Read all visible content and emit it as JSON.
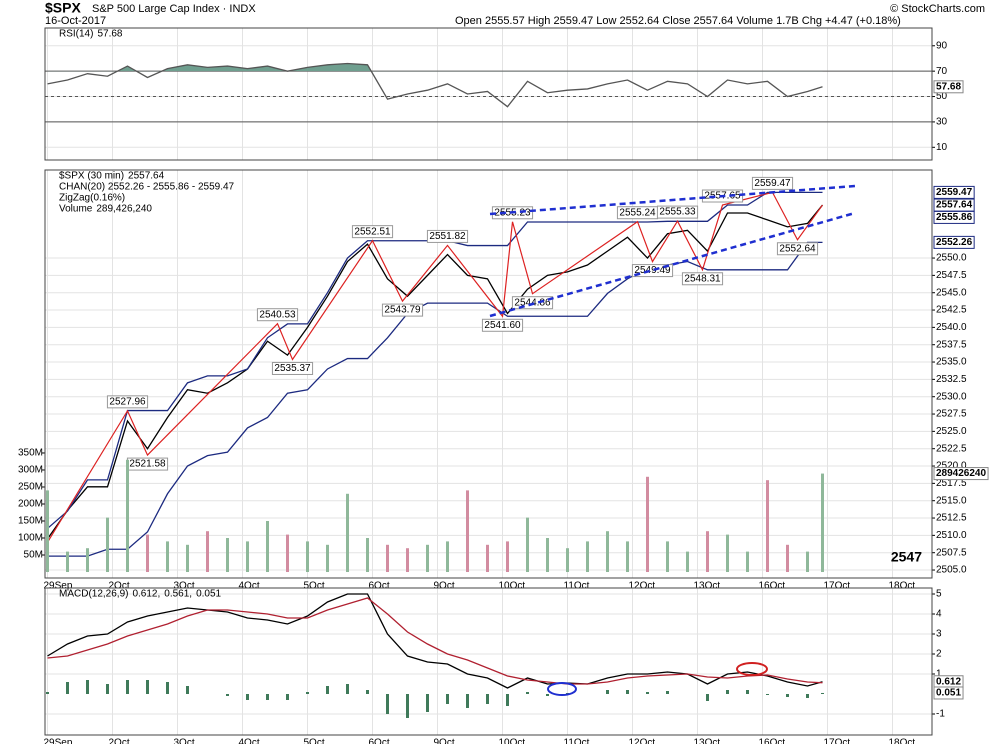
{
  "header": {
    "symbol": "$SPX",
    "name": "S&P 500 Large Cap Index · INDX",
    "date": "16-Oct-2017",
    "quote": "Open 2555.57   High 2559.47   Low 2552.64   Close 2557.64   Volume 1.7B   Chg +4.47 (+0.18%)",
    "credit": "© StockCharts.com"
  },
  "chart_data": [
    {
      "type": "line",
      "legend_layout": "row",
      "x": [
        0,
        4,
        8,
        12,
        16,
        20,
        24,
        28,
        32,
        36,
        40,
        44,
        48,
        52,
        56,
        60,
        64,
        68,
        72,
        76,
        80,
        84,
        88,
        92,
        96,
        100,
        104,
        108,
        112,
        116,
        120,
        124,
        128,
        132,
        136,
        140,
        144,
        148,
        152,
        155
      ],
      "xlim": [
        -0.5,
        176.9
      ],
      "xticks": [
        0,
        13,
        26,
        39,
        52,
        65,
        78,
        91,
        104,
        117,
        130,
        143,
        156,
        169
      ],
      "ylim": [
        0,
        104
      ],
      "yticks": [
        90,
        70,
        50,
        30,
        10
      ],
      "levels": [
        70,
        50,
        30
      ],
      "fill_above": 70,
      "series": [
        {
          "name": "RSI(14)",
          "color": "#555555",
          "fill": "#6f9f8f",
          "show_last": true,
          "boxed_last": true,
          "values": [
            60,
            63,
            68,
            66,
            74,
            65,
            72,
            75,
            73,
            74,
            72,
            74,
            70,
            73,
            75,
            76,
            75,
            48,
            52,
            55,
            60,
            52,
            54,
            42,
            62,
            53,
            55,
            56,
            60,
            63,
            55,
            62,
            60,
            50,
            63,
            60,
            62,
            50,
            54,
            57.68
          ]
        }
      ]
    },
    {
      "type": "line",
      "legend_layout": "column",
      "annotation": "2547",
      "grid": true,
      "x": [
        0,
        4,
        8,
        12,
        16,
        20,
        24,
        28,
        32,
        36,
        40,
        44,
        48,
        52,
        56,
        60,
        64,
        68,
        72,
        76,
        80,
        84,
        88,
        92,
        96,
        100,
        104,
        108,
        112,
        116,
        120,
        124,
        128,
        132,
        136,
        140,
        144,
        148,
        152,
        155
      ],
      "xlim": [
        -0.5,
        176.9
      ],
      "xticks": [
        {
          "value": 0,
          "label": "29Sep"
        },
        {
          "value": 13,
          "label": "2Oct"
        },
        {
          "value": 26,
          "label": "3Oct"
        },
        {
          "value": 39,
          "label": "4Oct"
        },
        {
          "value": 52,
          "label": "5Oct"
        },
        {
          "value": 65,
          "label": "6Oct"
        },
        {
          "value": 78,
          "label": "9Oct"
        },
        {
          "value": 91,
          "label": "10Oct"
        },
        {
          "value": 104,
          "label": "11Oct"
        },
        {
          "value": 117,
          "label": "12Oct"
        },
        {
          "value": 130,
          "label": "13Oct"
        },
        {
          "value": 143,
          "label": "16Oct"
        },
        {
          "value": 156,
          "label": "17Oct"
        },
        {
          "value": 169,
          "label": "18Oct"
        }
      ],
      "ylim": [
        2503.85,
        2562.7
      ],
      "yticks": [
        {
          "value": 2505,
          "label": "2505.0"
        },
        2507.5,
        {
          "value": 2510,
          "label": "2510.0"
        },
        2512.5,
        {
          "value": 2515,
          "label": "2515.0"
        },
        2517.5,
        {
          "value": 2520,
          "label": "2520.0"
        },
        2522.5,
        {
          "value": 2525,
          "label": "2525.0"
        },
        2527.5,
        {
          "value": 2530,
          "label": "2530.0"
        },
        2532.5,
        {
          "value": 2535,
          "label": "2535.0"
        },
        2537.5,
        {
          "value": 2540,
          "label": "2540.0"
        },
        2542.5,
        {
          "value": 2545,
          "label": "2545.0"
        },
        2547.5,
        {
          "value": 2550,
          "label": "2550.0"
        }
      ],
      "markers": [
        2559.47,
        2557.64,
        2555.86,
        2552.26
      ],
      "y2lim": [
        -17600000,
        1182000000
      ],
      "y2ticks": [
        {
          "value": 50000000,
          "label": "50M"
        },
        {
          "value": 100000000,
          "label": "100M"
        },
        {
          "value": 150000000,
          "label": "150M"
        },
        {
          "value": 200000000,
          "label": "200M"
        },
        {
          "value": 250000000,
          "label": "250M"
        },
        {
          "value": 300000000,
          "label": "300M"
        },
        {
          "value": 350000000,
          "label": "350M"
        }
      ],
      "series": [
        {
          "name": "$SPX (30 min)",
          "color": "#000000",
          "show_last": true,
          "values": [
            2509.5,
            2513.6,
            2517,
            2517,
            2526.5,
            2522.5,
            2527,
            2531,
            2530.5,
            2532,
            2534,
            2538,
            2536,
            2540,
            2544.5,
            2549.5,
            2552,
            2547,
            2544.5,
            2547.5,
            2550.5,
            2547.5,
            2547,
            2542,
            2545.5,
            2547.5,
            2548,
            2549,
            2551,
            2553,
            2550,
            2553.5,
            2554,
            2551,
            2556.5,
            2556.5,
            2555.5,
            2554.5,
            2555,
            2557.64
          ]
        },
        {
          "name": "CHAN(20) 2552.26 - 2555.86 - 2559.47",
          "color": "#1c2a80",
          "values": [
            2511,
            2513.5,
            2518,
            2518,
            2528,
            2528,
            2528,
            2532,
            2533,
            2533,
            2534,
            2538.5,
            2540.5,
            2540.5,
            2545,
            2550,
            2552.5,
            2552.5,
            2552.5,
            2552.5,
            2552.5,
            2551.8,
            2551.8,
            2551.8,
            2555.2,
            2555.2,
            2555.2,
            2555.2,
            2555.2,
            2555.2,
            2555.2,
            2555.3,
            2555.3,
            2555.3,
            2557.65,
            2557.65,
            2559.47,
            2559.47,
            2559.47,
            2559.47
          ]
        },
        {
          "color": "#1c2a80",
          "values": [
            2507,
            2507,
            2507,
            2508,
            2508,
            2510.5,
            2516,
            2520,
            2521.5,
            2522,
            2525.5,
            2527,
            2530.5,
            2531,
            2534,
            2535.5,
            2535.5,
            2538.5,
            2542,
            2543.5,
            2543.5,
            2543.5,
            2543.5,
            2541.6,
            2541.6,
            2541.6,
            2541.6,
            2541.6,
            2544.9,
            2547,
            2548.5,
            2549,
            2549.5,
            2548.3,
            2548.3,
            2548.3,
            2548.3,
            2548.3,
            2552.26,
            2552.26
          ]
        },
        {
          "name": "ZigZag(0.16%)",
          "color": "#dd2222",
          "kind": "zigzag",
          "x": [
            0,
            16,
            20,
            46,
            49,
            65,
            71,
            80,
            91,
            93,
            97,
            118,
            121,
            126,
            131,
            135,
            145,
            150,
            155
          ],
          "values": [
            2509,
            2527.96,
            2521.58,
            2540.53,
            2535.37,
            2552.51,
            2543.79,
            2551.82,
            2541.6,
            2555.23,
            2544.86,
            2555.24,
            2549.49,
            2555.33,
            2548.31,
            2557.65,
            2559.47,
            2552.64,
            2557.64
          ],
          "value_labels": [
            null,
            "2527.96",
            "2521.58",
            "2540.53",
            "2535.37",
            "2552.51",
            "2543.79",
            "2551.82",
            "2541.60",
            "2555.23",
            "2544.86",
            "2555.24",
            "2549.49",
            "2555.33",
            "2548.31",
            "2557.65",
            "2559.47",
            "2552.64",
            null
          ]
        },
        {
          "name": "Volume",
          "kind": "bar",
          "axis": "y2",
          "legend_label": "289,426,240",
          "boxed_last": true,
          "up_color": "#8fb89a",
          "down_color": "#d28ca0",
          "color": "#2e6b2e",
          "values": [
            240000000,
            60000000,
            70000000,
            160000000,
            330000000,
            110000000,
            90000000,
            80000000,
            120000000,
            100000000,
            90000000,
            150000000,
            110000000,
            90000000,
            80000000,
            230000000,
            100000000,
            80000000,
            70000000,
            80000000,
            90000000,
            240000000,
            80000000,
            90000000,
            160000000,
            100000000,
            70000000,
            90000000,
            120000000,
            90000000,
            280000000,
            90000000,
            60000000,
            120000000,
            110000000,
            60000000,
            270000000,
            80000000,
            60000000,
            289426240
          ]
        }
      ]
    },
    {
      "type": "line",
      "legend_layout": "row",
      "x": [
        0,
        4,
        8,
        12,
        16,
        20,
        24,
        28,
        32,
        36,
        40,
        44,
        48,
        52,
        56,
        60,
        64,
        68,
        72,
        76,
        80,
        84,
        88,
        92,
        96,
        100,
        104,
        108,
        112,
        116,
        120,
        124,
        128,
        132,
        136,
        140,
        144,
        148,
        152,
        155
      ],
      "xlim": [
        -0.5,
        176.9
      ],
      "xticks": [
        {
          "value": 0,
          "label": "29Sep"
        },
        {
          "value": 13,
          "label": "2Oct"
        },
        {
          "value": 26,
          "label": "3Oct"
        },
        {
          "value": 39,
          "label": "4Oct"
        },
        {
          "value": 52,
          "label": "5Oct"
        },
        {
          "value": 65,
          "label": "6Oct"
        },
        {
          "value": 78,
          "label": "9Oct"
        },
        {
          "value": 91,
          "label": "10Oct"
        },
        {
          "value": 104,
          "label": "11Oct"
        },
        {
          "value": 117,
          "label": "12Oct"
        },
        {
          "value": 130,
          "label": "13Oct"
        },
        {
          "value": 143,
          "label": "16Oct"
        },
        {
          "value": 156,
          "label": "17Oct"
        },
        {
          "value": 169,
          "label": "18Oct"
        }
      ],
      "ylim": [
        -2.05,
        5.3
      ],
      "yticks": [
        5,
        4,
        3,
        2,
        1,
        -1
      ],
      "series": [
        {
          "name": "MACD(12,26,9)",
          "legend_label": "0.612,",
          "color": "#000000",
          "boxed_last": true,
          "values": [
            1.9,
            2.5,
            2.9,
            3.0,
            3.6,
            3.9,
            4.1,
            4.3,
            4.2,
            4.1,
            3.8,
            3.7,
            3.5,
            3.9,
            4.6,
            5.0,
            5.0,
            3.0,
            1.9,
            1.6,
            1.5,
            1.0,
            0.8,
            0.3,
            0.8,
            0.5,
            0.55,
            0.5,
            0.8,
            1.0,
            1.0,
            1.1,
            1.0,
            0.5,
            1.0,
            1.1,
            0.9,
            0.6,
            0.4,
            0.612
          ]
        },
        {
          "legend_label": "0.561,",
          "color": "#b02030",
          "values": [
            1.8,
            1.9,
            2.2,
            2.5,
            2.9,
            3.2,
            3.5,
            3.9,
            4.2,
            4.2,
            4.1,
            4.0,
            3.8,
            3.8,
            4.2,
            4.5,
            4.8,
            4.0,
            3.1,
            2.5,
            2.0,
            1.7,
            1.3,
            0.9,
            0.7,
            0.6,
            0.5,
            0.5,
            0.6,
            0.8,
            0.9,
            0.95,
            1.0,
            0.85,
            0.8,
            0.9,
            0.95,
            0.75,
            0.6,
            0.561
          ]
        },
        {
          "legend_label": "0.051",
          "kind": "bar",
          "color": "#3f7a5a",
          "boxed_last": true,
          "values": [
            0.1,
            0.6,
            0.7,
            0.5,
            0.7,
            0.7,
            0.6,
            0.4,
            0.0,
            -0.1,
            -0.3,
            -0.3,
            -0.3,
            0.1,
            0.4,
            0.5,
            0.2,
            -1.0,
            -1.2,
            -0.9,
            -0.5,
            -0.7,
            -0.5,
            -0.6,
            0.1,
            -0.1,
            0.05,
            0.0,
            0.2,
            0.2,
            0.1,
            0.15,
            0.0,
            -0.35,
            0.2,
            0.2,
            -0.05,
            -0.15,
            -0.2,
            0.051
          ]
        }
      ]
    }
  ]
}
